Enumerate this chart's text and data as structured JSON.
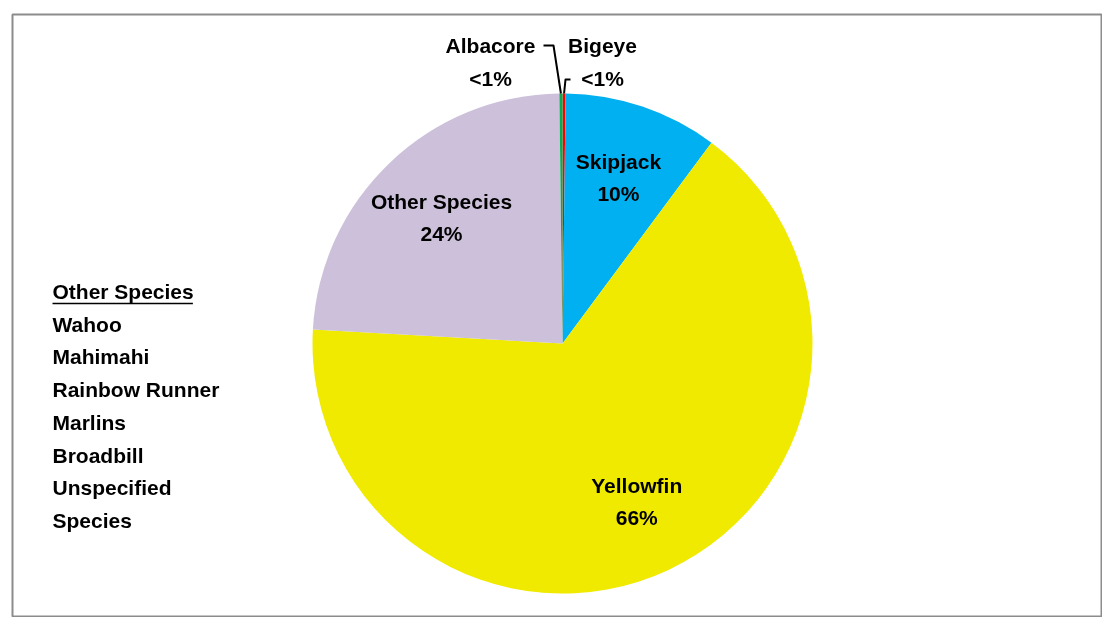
{
  "chart_data": {
    "type": "pie",
    "categories": [
      "Bigeye",
      "Skipjack",
      "Yellowfin",
      "Other Species",
      "Albacore"
    ],
    "values": [
      0.2,
      10,
      66,
      24,
      0.2
    ],
    "colors": [
      "#ff0000",
      "#00b0f0",
      "#f0ea00",
      "#ccc0da",
      "#00b050"
    ],
    "value_labels": [
      "<1%",
      "10%",
      "66%",
      "24%",
      "<1%"
    ],
    "annotations": [
      "Other Species",
      "Wahoo",
      "Mahimahi",
      "Rainbow Runner",
      "Marlins",
      "Broadbill",
      "Unspecified Species"
    ]
  }
}
